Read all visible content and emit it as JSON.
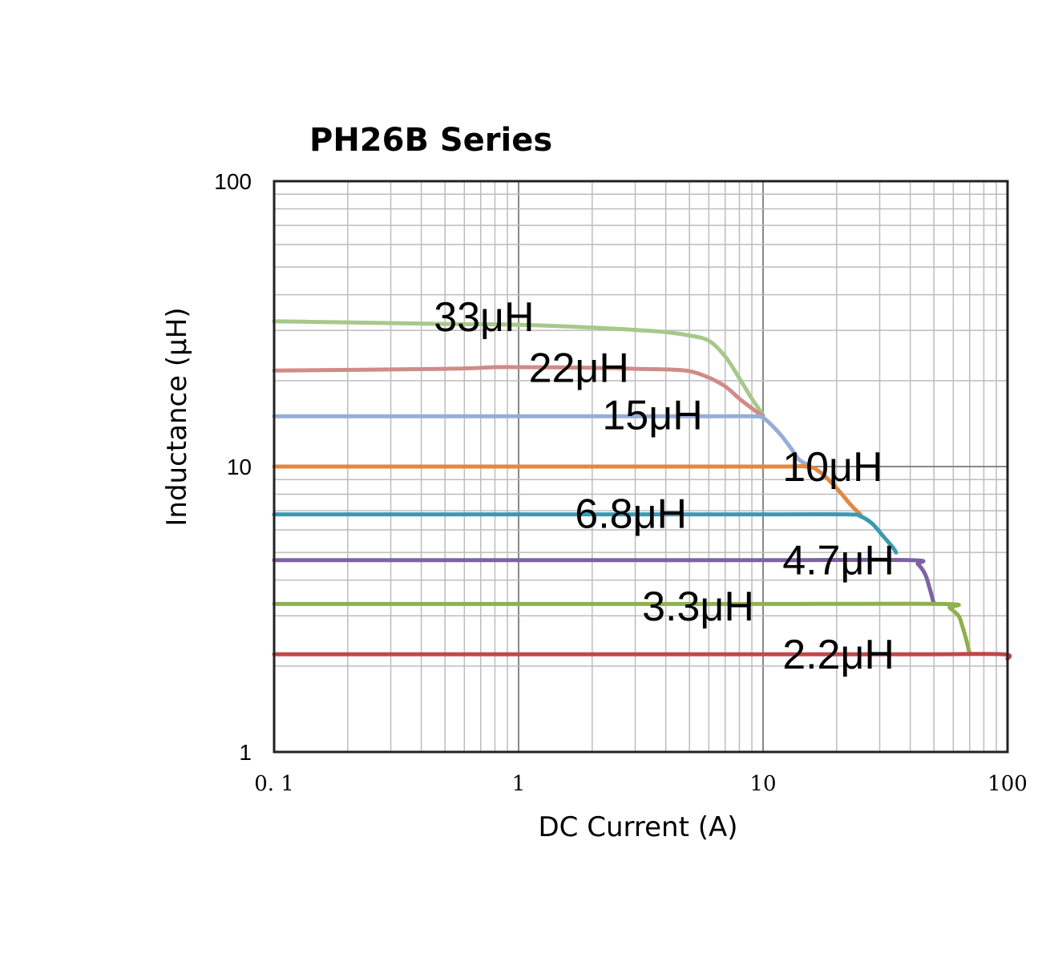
{
  "chart_data": {
    "type": "line",
    "title": "PH26B  Series",
    "xlabel": "DC Current (A)",
    "ylabel": "Inductance (μH)",
    "x_scale": "log",
    "y_scale": "log",
    "xlim": [
      0.1,
      100
    ],
    "ylim": [
      1,
      100
    ],
    "grid": true,
    "legend": "inline labels",
    "x_ticks": [
      {
        "value": 0.1,
        "label": "0. 1"
      },
      {
        "value": 1,
        "label": "1"
      },
      {
        "value": 10,
        "label": "10"
      },
      {
        "value": 100,
        "label": "100"
      }
    ],
    "y_ticks": [
      {
        "value": 1,
        "label": "1"
      },
      {
        "value": 10,
        "label": "10"
      },
      {
        "value": 100,
        "label": "100"
      }
    ],
    "series": [
      {
        "name": "33μH",
        "color": "#a6c98a",
        "points": [
          [
            0.1,
            32.3
          ],
          [
            0.5,
            31.6
          ],
          [
            1,
            31.4
          ],
          [
            2,
            30.7
          ],
          [
            3,
            30.1
          ],
          [
            4,
            29.6
          ],
          [
            5,
            28.8
          ],
          [
            6,
            27.6
          ],
          [
            7,
            24.3
          ],
          [
            8,
            20.4
          ],
          [
            9,
            17.3
          ],
          [
            10,
            15.2
          ]
        ],
        "label_at": [
          0.45,
          33.5
        ]
      },
      {
        "name": "22μH",
        "color": "#d18b88",
        "points": [
          [
            0.1,
            21.7
          ],
          [
            0.5,
            22.0
          ],
          [
            0.8,
            22.3
          ],
          [
            1,
            22.3
          ],
          [
            2,
            22.2
          ],
          [
            3,
            22.0
          ],
          [
            4,
            21.9
          ],
          [
            5,
            21.6
          ],
          [
            6,
            20.5
          ],
          [
            7,
            19.1
          ],
          [
            8,
            17.3
          ],
          [
            9,
            16.0
          ],
          [
            10,
            15.0
          ]
        ],
        "label_at": [
          1.1,
          22.2
        ]
      },
      {
        "name": "15μH",
        "color": "#95aed6",
        "points": [
          [
            0.1,
            15.0
          ],
          [
            1,
            15.0
          ],
          [
            5,
            15.0
          ],
          [
            9,
            15.0
          ],
          [
            10,
            14.8
          ],
          [
            11,
            13.8
          ],
          [
            12,
            12.7
          ],
          [
            13,
            11.6
          ],
          [
            14,
            10.6
          ],
          [
            15,
            10.2
          ]
        ],
        "label_at": [
          2.2,
          15.2
        ]
      },
      {
        "name": "10μH",
        "color": "#e2883f",
        "points": [
          [
            0.1,
            10.0
          ],
          [
            1,
            10.0
          ],
          [
            10,
            10.0
          ],
          [
            15,
            10.0
          ],
          [
            17,
            9.6
          ],
          [
            19,
            8.8
          ],
          [
            21,
            8.0
          ],
          [
            23,
            7.3
          ],
          [
            25,
            6.8
          ]
        ],
        "label_at": [
          12,
          10.0
        ]
      },
      {
        "name": "6.8μH",
        "color": "#3a9ab2",
        "points": [
          [
            0.1,
            6.8
          ],
          [
            1,
            6.8
          ],
          [
            10,
            6.8
          ],
          [
            22,
            6.8
          ],
          [
            25,
            6.7
          ],
          [
            28,
            6.3
          ],
          [
            31,
            5.7
          ],
          [
            34,
            5.2
          ],
          [
            35,
            5.0
          ]
        ],
        "label_at": [
          1.7,
          6.85
        ]
      },
      {
        "name": "4.7μH",
        "color": "#7d62a3",
        "points": [
          [
            0.1,
            4.7
          ],
          [
            1,
            4.7
          ],
          [
            10,
            4.7
          ],
          [
            40,
            4.7
          ],
          [
            43,
            4.55
          ],
          [
            46,
            4.2
          ],
          [
            48,
            3.75
          ],
          [
            50,
            3.3
          ]
        ],
        "label_at": [
          12,
          4.7
        ]
      },
      {
        "name": "3.3μH",
        "color": "#8fb04e",
        "points": [
          [
            0.1,
            3.3
          ],
          [
            1,
            3.3
          ],
          [
            10,
            3.3
          ],
          [
            55,
            3.3
          ],
          [
            58,
            3.2
          ],
          [
            63,
            3.0
          ],
          [
            65,
            2.8
          ],
          [
            68,
            2.45
          ],
          [
            70,
            2.2
          ]
        ],
        "label_at": [
          3.2,
          3.25
        ]
      },
      {
        "name": "2.2μH",
        "color": "#c0484a",
        "points": [
          [
            0.1,
            2.2
          ],
          [
            1,
            2.2
          ],
          [
            10,
            2.2
          ],
          [
            50,
            2.2
          ],
          [
            96,
            2.2
          ],
          [
            100,
            2.12
          ]
        ],
        "label_at": [
          12,
          2.2
        ]
      }
    ]
  }
}
